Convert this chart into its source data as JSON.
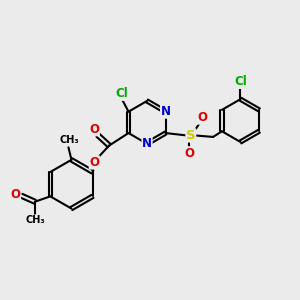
{
  "bg_color": "#ebebeb",
  "bond_color": "#000000",
  "atom_colors": {
    "N": "#0000cc",
    "O": "#dd0000",
    "S": "#cccc00",
    "Cl": "#00aa00"
  },
  "figsize": [
    3.0,
    3.0
  ],
  "dpi": 100
}
